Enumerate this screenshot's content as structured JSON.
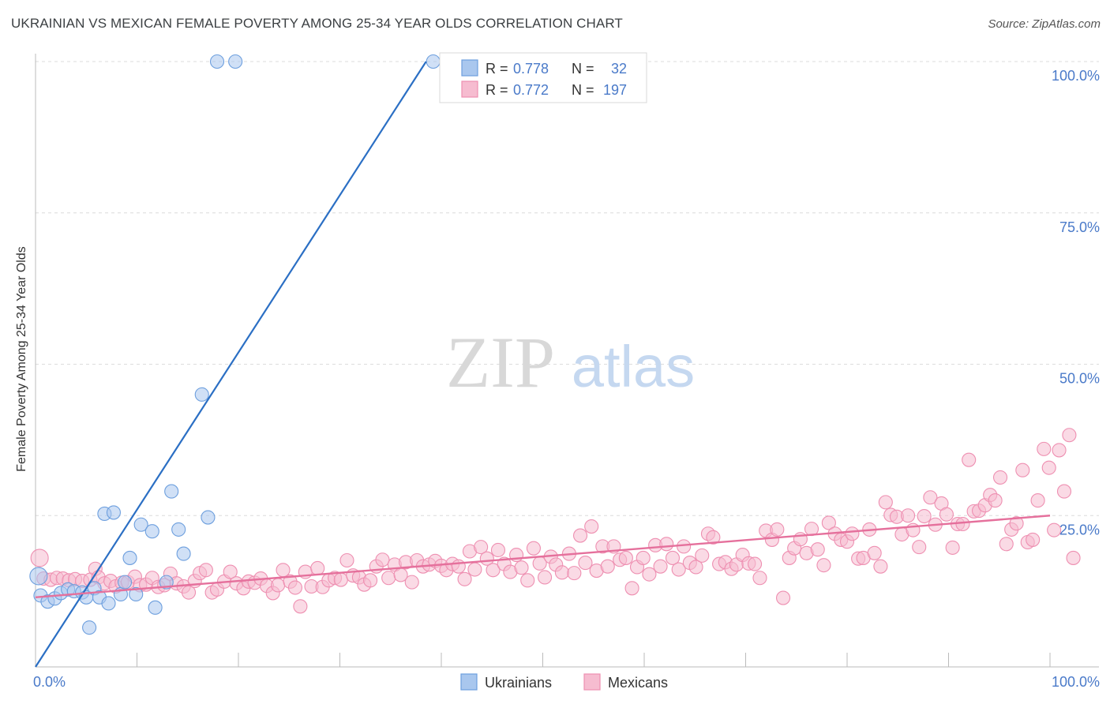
{
  "header": {
    "title": "UKRAINIAN VS MEXICAN FEMALE POVERTY AMONG 25-34 YEAR OLDS CORRELATION CHART",
    "source": "Source: ZipAtlas.com"
  },
  "watermark": {
    "zip": "ZIP",
    "atlas": "atlas"
  },
  "colors": {
    "ukrainian_fill": "#a9c7ee",
    "ukrainian_stroke": "#6d9fde",
    "ukrainian_line": "#2b6fc4",
    "mexican_fill": "#f6bcd0",
    "mexican_stroke": "#ee8fb1",
    "mexican_line": "#e5709c",
    "tick_label": "#4a7ac9",
    "grid": "#dcdcdc",
    "axis": "#bbbbbb"
  },
  "chart_data": {
    "type": "scatter",
    "title": "UKRAINIAN VS MEXICAN FEMALE POVERTY AMONG 25-34 YEAR OLDS CORRELATION CHART",
    "xlabel": "",
    "ylabel": "Female Poverty Among 25-34 Year Olds",
    "xlim": [
      0,
      100
    ],
    "ylim": [
      0,
      100
    ],
    "x_tick_labels": [
      "0.0%",
      "100.0%"
    ],
    "y_ticks": [
      25,
      50,
      75,
      100
    ],
    "y_tick_labels": [
      "25.0%",
      "50.0%",
      "75.0%",
      "100.0%"
    ],
    "grid": true,
    "legend": {
      "placement": "top",
      "rows": [
        {
          "r_label": "R =",
          "r": "0.778",
          "n_label": "N =",
          "n": "32"
        },
        {
          "r_label": "R =",
          "r": "0.772",
          "n_label": "N =",
          "n": "197"
        }
      ]
    },
    "bottom_legend": [
      "Ukrainians",
      "Mexicans"
    ],
    "series": [
      {
        "name": "Ukrainians",
        "trend": {
          "x0": 0,
          "y0": 0,
          "x1": 38.5,
          "y1": 100
        },
        "points": [
          [
            0.3,
            15.0
          ],
          [
            0.5,
            11.8
          ],
          [
            1.2,
            10.8
          ],
          [
            1.9,
            11.3
          ],
          [
            2.5,
            12.2
          ],
          [
            3.2,
            12.8
          ],
          [
            3.8,
            12.5
          ],
          [
            4.6,
            12.3
          ],
          [
            5.0,
            11.5
          ],
          [
            5.3,
            6.5
          ],
          [
            5.8,
            13.0
          ],
          [
            6.3,
            11.5
          ],
          [
            6.8,
            25.3
          ],
          [
            7.2,
            10.5
          ],
          [
            7.7,
            25.5
          ],
          [
            8.4,
            12.0
          ],
          [
            8.8,
            14.0
          ],
          [
            9.3,
            18.0
          ],
          [
            9.9,
            12.0
          ],
          [
            10.4,
            23.5
          ],
          [
            11.5,
            22.4
          ],
          [
            11.8,
            9.8
          ],
          [
            12.9,
            14.0
          ],
          [
            13.4,
            29.0
          ],
          [
            14.1,
            22.7
          ],
          [
            14.6,
            18.7
          ],
          [
            16.4,
            45.0
          ],
          [
            17.0,
            24.7
          ],
          [
            17.9,
            100
          ],
          [
            19.7,
            100
          ],
          [
            39.2,
            100
          ]
        ]
      },
      {
        "name": "Mexicans",
        "trend": {
          "x0": 0,
          "y0": 11.5,
          "x1": 100,
          "y1": 25.0
        },
        "points": [
          [
            0.4,
            18.0
          ],
          [
            0.8,
            14.6
          ],
          [
            1.5,
            14.4
          ],
          [
            2.1,
            14.7
          ],
          [
            2.7,
            14.6
          ],
          [
            3.3,
            14.3
          ],
          [
            3.9,
            14.5
          ],
          [
            4.6,
            14.2
          ],
          [
            5.4,
            14.4
          ],
          [
            5.9,
            16.2
          ],
          [
            6.2,
            14.8
          ],
          [
            6.8,
            13.8
          ],
          [
            7.4,
            14.2
          ],
          [
            7.9,
            13.3
          ],
          [
            8.5,
            13.9
          ],
          [
            9.1,
            14.0
          ],
          [
            9.8,
            14.9
          ],
          [
            10.3,
            13.5
          ],
          [
            10.9,
            13.6
          ],
          [
            11.5,
            14.7
          ],
          [
            12.1,
            13.2
          ],
          [
            12.7,
            13.5
          ],
          [
            13.3,
            15.4
          ],
          [
            13.9,
            13.8
          ],
          [
            14.6,
            13.3
          ],
          [
            15.1,
            12.3
          ],
          [
            15.7,
            14.2
          ],
          [
            16.2,
            15.5
          ],
          [
            16.8,
            16.0
          ],
          [
            17.4,
            12.3
          ],
          [
            17.9,
            12.8
          ],
          [
            18.6,
            14.1
          ],
          [
            19.2,
            15.7
          ],
          [
            19.8,
            13.8
          ],
          [
            20.5,
            13.0
          ],
          [
            21.0,
            14.1
          ],
          [
            21.6,
            13.9
          ],
          [
            22.2,
            14.6
          ],
          [
            22.8,
            13.4
          ],
          [
            23.4,
            12.2
          ],
          [
            23.9,
            13.5
          ],
          [
            24.4,
            16.0
          ],
          [
            25.1,
            14.1
          ],
          [
            25.6,
            13.1
          ],
          [
            26.1,
            10.0
          ],
          [
            26.6,
            15.7
          ],
          [
            27.2,
            13.3
          ],
          [
            27.8,
            16.3
          ],
          [
            28.3,
            13.2
          ],
          [
            28.9,
            14.3
          ],
          [
            29.5,
            14.7
          ],
          [
            30.1,
            14.4
          ],
          [
            30.7,
            17.6
          ],
          [
            31.3,
            15.1
          ],
          [
            31.9,
            14.8
          ],
          [
            32.4,
            13.6
          ],
          [
            33.0,
            14.3
          ],
          [
            33.6,
            16.6
          ],
          [
            34.2,
            17.7
          ],
          [
            34.8,
            14.7
          ],
          [
            35.4,
            16.9
          ],
          [
            36.0,
            15.2
          ],
          [
            36.5,
            17.3
          ],
          [
            37.1,
            14.0
          ],
          [
            37.6,
            17.6
          ],
          [
            38.2,
            16.6
          ],
          [
            38.8,
            16.9
          ],
          [
            39.4,
            17.5
          ],
          [
            40.0,
            16.7
          ],
          [
            40.5,
            16.0
          ],
          [
            41.1,
            17.0
          ],
          [
            41.7,
            16.6
          ],
          [
            42.3,
            14.5
          ],
          [
            42.8,
            19.1
          ],
          [
            43.3,
            16.1
          ],
          [
            43.9,
            19.8
          ],
          [
            44.5,
            17.9
          ],
          [
            45.1,
            16.0
          ],
          [
            45.6,
            19.3
          ],
          [
            46.2,
            17.0
          ],
          [
            46.8,
            15.7
          ],
          [
            47.4,
            18.5
          ],
          [
            47.9,
            16.4
          ],
          [
            48.5,
            14.3
          ],
          [
            49.1,
            19.6
          ],
          [
            49.7,
            17.1
          ],
          [
            50.2,
            14.8
          ],
          [
            50.8,
            18.2
          ],
          [
            51.3,
            16.9
          ],
          [
            51.9,
            15.6
          ],
          [
            52.6,
            18.7
          ],
          [
            53.1,
            15.5
          ],
          [
            53.7,
            21.7
          ],
          [
            54.2,
            17.2
          ],
          [
            54.8,
            23.2
          ],
          [
            55.3,
            15.9
          ],
          [
            55.9,
            19.9
          ],
          [
            56.4,
            16.6
          ],
          [
            57.0,
            19.9
          ],
          [
            57.6,
            17.7
          ],
          [
            58.2,
            18.0
          ],
          [
            58.8,
            13.0
          ],
          [
            59.3,
            16.5
          ],
          [
            59.9,
            18.0
          ],
          [
            60.5,
            15.3
          ],
          [
            61.1,
            20.1
          ],
          [
            61.6,
            16.6
          ],
          [
            62.2,
            20.3
          ],
          [
            62.8,
            18.0
          ],
          [
            63.4,
            16.1
          ],
          [
            63.9,
            19.9
          ],
          [
            64.5,
            17.2
          ],
          [
            65.1,
            16.5
          ],
          [
            65.7,
            18.4
          ],
          [
            66.3,
            22.0
          ],
          [
            66.8,
            21.4
          ],
          [
            67.4,
            17.0
          ],
          [
            68.0,
            17.3
          ],
          [
            68.6,
            16.2
          ],
          [
            69.1,
            16.9
          ],
          [
            69.7,
            18.5
          ],
          [
            70.3,
            17.1
          ],
          [
            70.9,
            17.0
          ],
          [
            71.4,
            14.7
          ],
          [
            72.0,
            22.5
          ],
          [
            72.6,
            21.0
          ],
          [
            73.1,
            22.7
          ],
          [
            73.7,
            11.4
          ],
          [
            74.3,
            18.0
          ],
          [
            74.8,
            19.6
          ],
          [
            75.4,
            21.1
          ],
          [
            76.0,
            18.8
          ],
          [
            76.5,
            22.8
          ],
          [
            77.1,
            19.4
          ],
          [
            77.7,
            16.8
          ],
          [
            78.2,
            23.8
          ],
          [
            78.8,
            22.0
          ],
          [
            79.4,
            21.0
          ],
          [
            80.0,
            20.7
          ],
          [
            80.5,
            22.0
          ],
          [
            81.1,
            17.9
          ],
          [
            81.6,
            18.0
          ],
          [
            82.2,
            22.7
          ],
          [
            82.7,
            18.8
          ],
          [
            83.3,
            16.6
          ],
          [
            83.8,
            27.2
          ],
          [
            84.3,
            25.1
          ],
          [
            84.9,
            24.8
          ],
          [
            85.4,
            21.9
          ],
          [
            86.0,
            25.0
          ],
          [
            86.5,
            22.6
          ],
          [
            87.1,
            19.8
          ],
          [
            87.6,
            24.9
          ],
          [
            88.2,
            28.0
          ],
          [
            88.7,
            23.5
          ],
          [
            89.3,
            27.0
          ],
          [
            89.8,
            25.2
          ],
          [
            90.4,
            19.7
          ],
          [
            90.9,
            23.6
          ],
          [
            91.4,
            23.6
          ],
          [
            92.0,
            34.2
          ],
          [
            92.5,
            25.7
          ],
          [
            93.0,
            25.8
          ],
          [
            93.6,
            26.7
          ],
          [
            94.1,
            28.4
          ],
          [
            94.6,
            27.5
          ],
          [
            95.1,
            31.3
          ],
          [
            95.7,
            20.3
          ],
          [
            96.2,
            22.7
          ],
          [
            96.7,
            23.7
          ],
          [
            97.3,
            32.5
          ],
          [
            97.8,
            20.6
          ],
          [
            98.3,
            21.0
          ],
          [
            98.8,
            27.5
          ],
          [
            99.4,
            36.0
          ],
          [
            99.9,
            32.9
          ],
          [
            100.4,
            22.6
          ],
          [
            100.9,
            35.8
          ],
          [
            101.4,
            29.0
          ],
          [
            101.9,
            38.3
          ],
          [
            102.3,
            18.0
          ]
        ]
      }
    ]
  }
}
